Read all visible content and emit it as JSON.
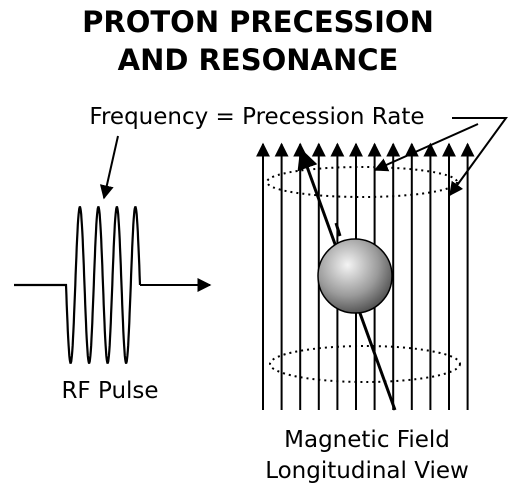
{
  "title": [
    "PROTON PRECESSION",
    "AND RESONANCE"
  ],
  "frequency_label": "Frequency = Precession Rate",
  "rf_pulse_label": "RF Pulse",
  "field_label": [
    "Magnetic Field",
    "Longitudinal View"
  ]
}
